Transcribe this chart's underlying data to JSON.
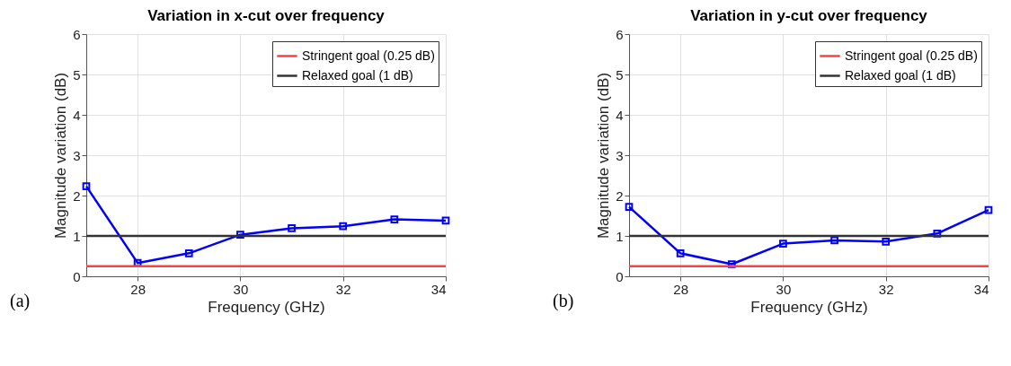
{
  "chart_data": [
    {
      "type": "line",
      "title": "Variation in x-cut over frequency",
      "xlabel": "Frequency (GHz)",
      "ylabel": "Magnitude variation (dB)",
      "x": [
        27,
        28,
        29,
        30,
        31,
        32,
        33,
        34
      ],
      "xlim": [
        27,
        34
      ],
      "xticks": [
        28,
        30,
        32,
        34
      ],
      "ylim": [
        0,
        6
      ],
      "yticks": [
        0,
        1,
        2,
        3,
        4,
        5,
        6
      ],
      "grid": true,
      "legend": "top right",
      "marker": "square",
      "annotations": [
        "(a)"
      ],
      "ref_lines": [
        {
          "axis": "y",
          "value": 0.25,
          "label": "Stringent goal (0.25 dB)",
          "color": "#ff4040"
        },
        {
          "axis": "y",
          "value": 1,
          "label": "Relaxed goal (1 dB)",
          "color": "#333333"
        }
      ],
      "series": [
        {
          "color": "#0000ff",
          "values": [
            2.23,
            0.33,
            0.57,
            1.03,
            1.19,
            1.24,
            1.41,
            1.38
          ]
        }
      ]
    },
    {
      "type": "line",
      "title": "Variation in y-cut over frequency",
      "xlabel": "Frequency (GHz)",
      "ylabel": "Magnitude variation (dB)",
      "x": [
        27,
        28,
        29,
        30,
        31,
        32,
        33,
        34
      ],
      "xlim": [
        27,
        34
      ],
      "xticks": [
        28,
        30,
        32,
        34
      ],
      "ylim": [
        0,
        6
      ],
      "yticks": [
        0,
        1,
        2,
        3,
        4,
        5,
        6
      ],
      "grid": true,
      "legend": "top right",
      "marker": "square",
      "annotations": [
        "(b)"
      ],
      "ref_lines": [
        {
          "axis": "y",
          "value": 0.25,
          "label": "Stringent goal (0.25 dB)",
          "color": "#ff4040"
        },
        {
          "axis": "y",
          "value": 1,
          "label": "Relaxed goal (1 dB)",
          "color": "#333333"
        }
      ],
      "series": [
        {
          "color": "#0000ff",
          "values": [
            1.72,
            0.57,
            0.3,
            0.81,
            0.89,
            0.86,
            1.06,
            1.64
          ]
        }
      ]
    }
  ]
}
